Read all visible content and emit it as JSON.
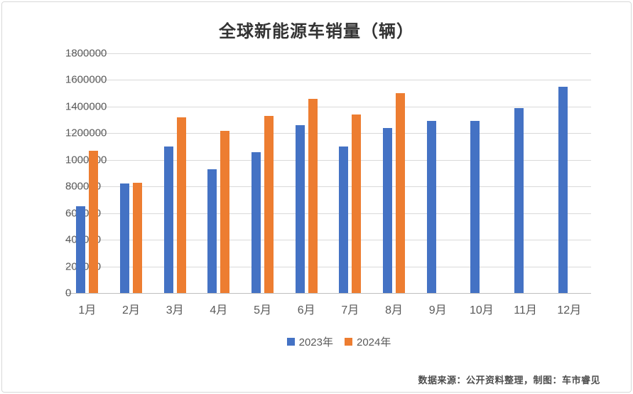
{
  "page": {
    "title": "全球新能源车销量（辆）",
    "footer_note": "数据来源：公开资料整理，制图：车市睿见"
  },
  "colors": {
    "series_2023": "#4472C4",
    "series_2024": "#ED7D31",
    "gridline": "#D9D9D9",
    "axis_line": "#BFBFBF",
    "tick_text": "#595959",
    "title_text": "#333333"
  },
  "chart_data": {
    "type": "bar",
    "title": "全球新能源车销量（辆）",
    "xlabel": "",
    "ylabel": "",
    "categories": [
      "1月",
      "2月",
      "3月",
      "4月",
      "5月",
      "6月",
      "7月",
      "8月",
      "9月",
      "10月",
      "11月",
      "12月"
    ],
    "series": [
      {
        "name": "2023年",
        "color": "#4472C4",
        "values": [
          650000,
          820000,
          1100000,
          930000,
          1060000,
          1260000,
          1100000,
          1240000,
          1290000,
          1290000,
          1390000,
          1550000
        ]
      },
      {
        "name": "2024年",
        "color": "#ED7D31",
        "values": [
          1070000,
          830000,
          1320000,
          1220000,
          1330000,
          1460000,
          1340000,
          1500000,
          null,
          null,
          null,
          null
        ]
      }
    ],
    "ylim": [
      0,
      1800000
    ],
    "ytick_step": 200000,
    "yticks": [
      0,
      200000,
      400000,
      600000,
      800000,
      1000000,
      1200000,
      1400000,
      1600000,
      1800000
    ],
    "grid": true,
    "legend_position": "bottom",
    "source_note": "数据来源：公开资料整理，制图：车市睿见"
  }
}
